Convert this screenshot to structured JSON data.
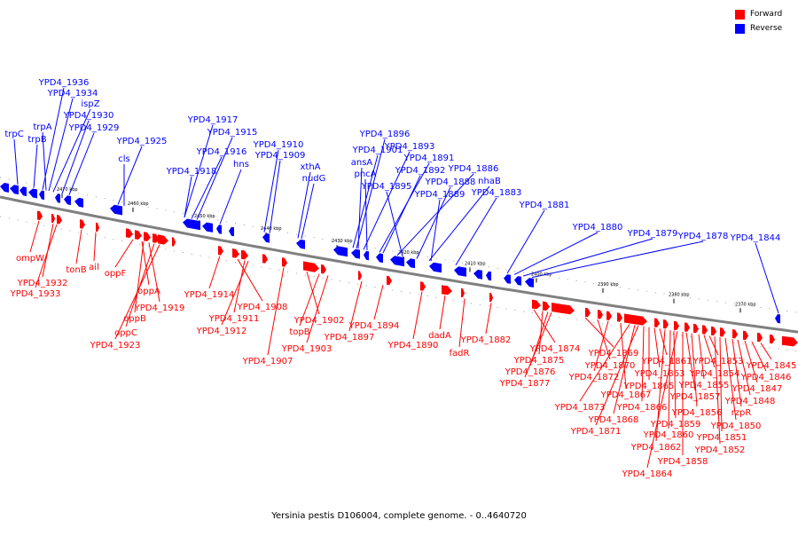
{
  "caption": "Yersinia pestis D106004, complete genome. - 0..4640720",
  "legend": [
    {
      "label": "Forward",
      "color": "#ff0000"
    },
    {
      "label": "Reverse",
      "color": "#0000ff"
    }
  ],
  "colors": {
    "forward": "#ff0000",
    "reverse": "#0000ff",
    "axis": "#808080",
    "tick": "#000000"
  },
  "ticks": [
    "2470 kbp",
    "2460 kbp",
    "2450 kbp",
    "2440 kbp",
    "2430 kbp",
    "2420 kbp",
    "2410 kbp",
    "2400 kbp",
    "2390 kbp",
    "2380 kbp",
    "2370 kbp"
  ],
  "reverse_labels": [
    "YPD4_1936",
    "YPD4_1934",
    "ispZ",
    "trpA",
    "YPD4_1930",
    "trpC",
    "YPD4_1929",
    "trpB",
    "YPD4_1925",
    "cls",
    "YPD4_1917",
    "YPD4_1915",
    "YPD4_1916",
    "YPD4_1918",
    "hns",
    "YPD4_1910",
    "YPD4_1909",
    "xthA",
    "nudG",
    "YPD4_1896",
    "YPD4_1901",
    "YPD4_1893",
    "ansA",
    "YPD4_1891",
    "pncA",
    "YPD4_1892",
    "YPD4_1886",
    "YPD4_1888",
    "nhaB",
    "YPD4_1895",
    "YPD4_1889",
    "YPD4_1883",
    "YPD4_1881",
    "YPD4_1880",
    "YPD4_1879",
    "YPD4_1878",
    "YPD4_1844"
  ],
  "forward_labels": [
    "ompW",
    "tonB",
    "ail",
    "oppF",
    "YPD4_1932",
    "YPD4_1933",
    "oppA",
    "YPD4_1919",
    "oppB",
    "oppC",
    "YPD4_1923",
    "YPD4_1914",
    "YPD4_1908",
    "YPD4_1911",
    "YPD4_1912",
    "YPD4_1907",
    "YPD4_1902",
    "topB",
    "YPD4_1903",
    "YPD4_1897",
    "YPD4_1894",
    "YPD4_1890",
    "dadA",
    "fadR",
    "YPD4_1882",
    "YPD4_1874",
    "YPD4_1875",
    "YPD4_1876",
    "YPD4_1877",
    "YPD4_1869",
    "YPD4_1870",
    "YPD4_1872",
    "YPD4_1867",
    "YPD4_1873",
    "YPD4_1868",
    "YPD4_1871",
    "YPD4_1866",
    "YPD4_1865",
    "YPD4_1863",
    "YPD4_1861",
    "YPD4_1862",
    "YPD4_1860",
    "YPD4_1859",
    "YPD4_1864",
    "YPD4_1858",
    "YPD4_1857",
    "YPD4_1856",
    "YPD4_1855",
    "YPD4_1854",
    "YPD4_1853",
    "YPD4_1852",
    "YPD4_1851",
    "YPD4_1850",
    "rzpR",
    "YPD4_1848",
    "YPD4_1847",
    "YPD4_1846",
    "YPD4_1845"
  ]
}
